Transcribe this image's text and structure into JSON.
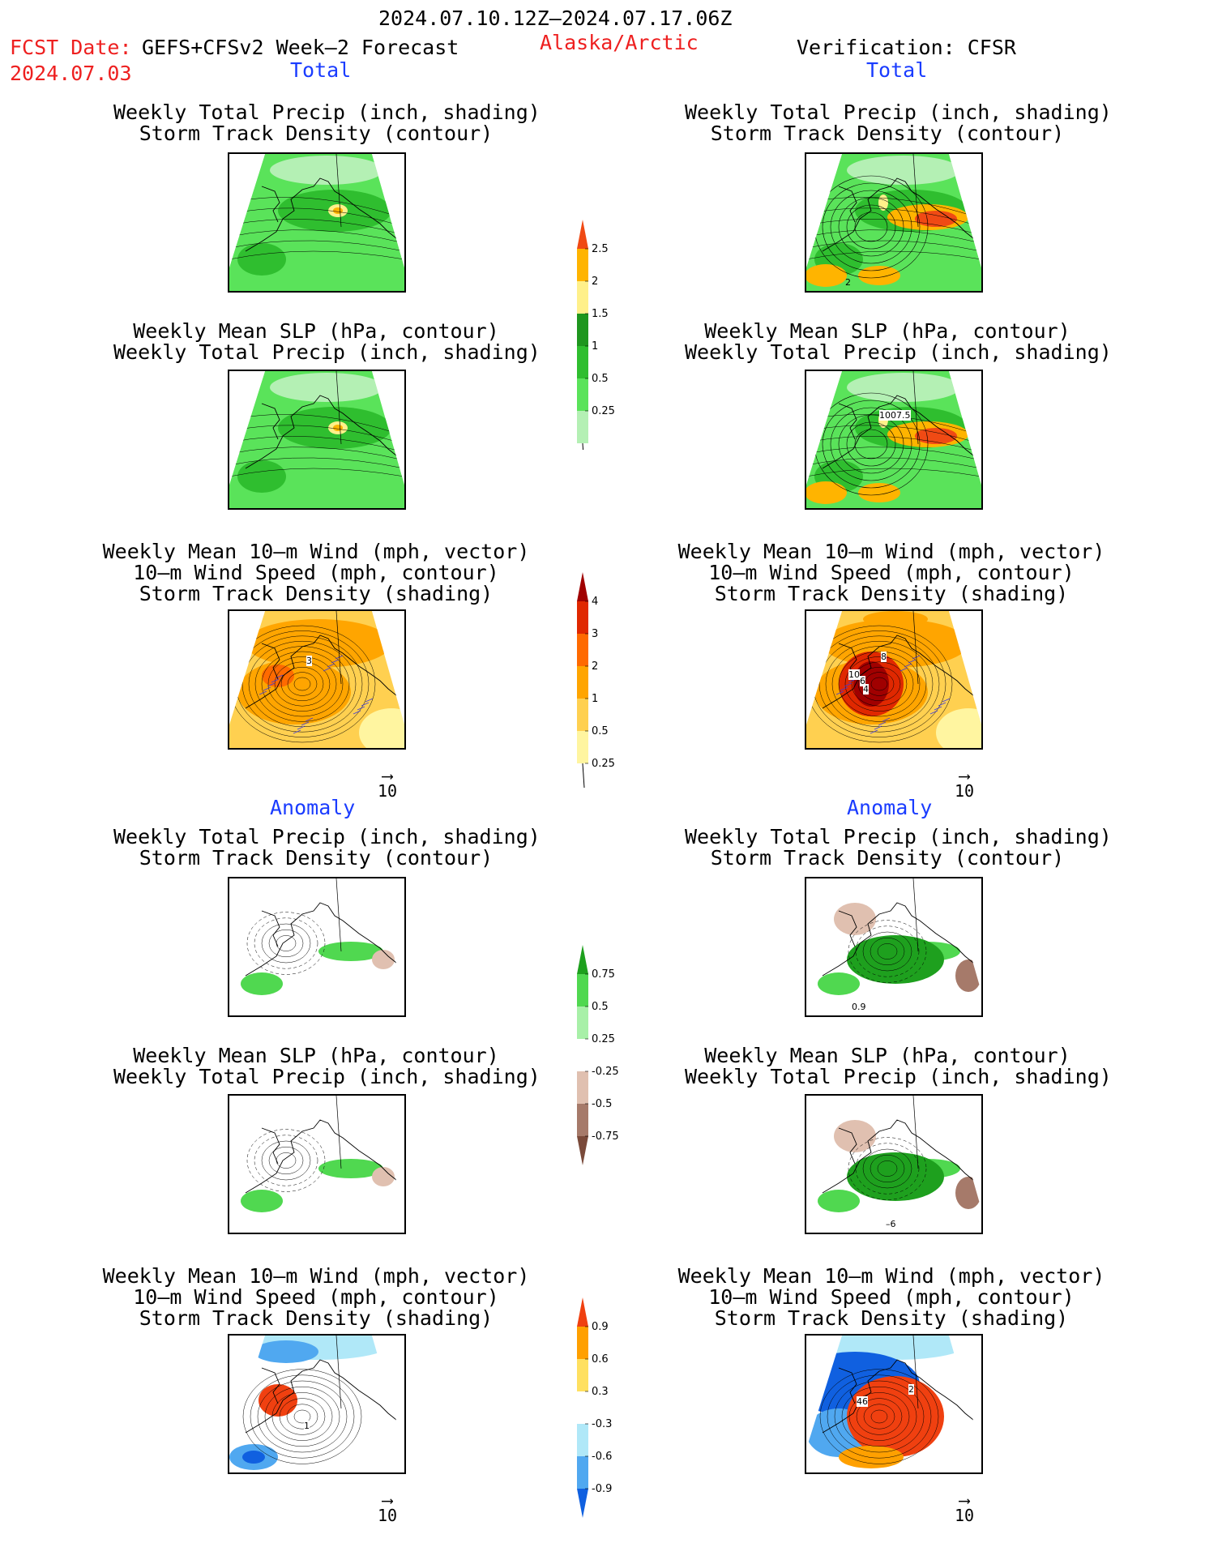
{
  "header": {
    "period": "2024.07.10.12Z–2024.07.17.06Z",
    "fcst_label": "FCST Date:",
    "model": "GEFS+CFSv2 Week–2 Forecast",
    "fcst_date": "2024.07.03",
    "region": "Alaska/Arctic",
    "verification": "Verification: CFSR"
  },
  "sections": {
    "total": "Total",
    "anomaly": "Anomaly"
  },
  "titles": {
    "precip_track": [
      "Weekly Total Precip (inch, shading)",
      "Storm Track Density (contour)"
    ],
    "slp_precip": [
      "Weekly Mean SLP (hPa, contour)",
      "Weekly Total Precip (inch, shading)"
    ],
    "wind_track": [
      "Weekly Mean 10–m Wind (mph, vector)",
      "10–m Wind Speed (mph, contour)",
      "Storm Track Density (shading)"
    ]
  },
  "contour_labels": {
    "total_precip_track_right": "2",
    "total_slp_right": "1007.5",
    "total_wind_left": "3",
    "total_wind_right_a": "10",
    "total_wind_right_b": "6",
    "total_wind_right_c": "4",
    "total_wind_right_d": "8",
    "anom_precip_track_right": "0.9",
    "anom_slp_right": "–6",
    "anom_wind_left": "1",
    "anom_wind_right_a": "46",
    "anom_wind_right_b": "2"
  },
  "vector_reference": "10",
  "colors": {
    "precip": [
      "#b4f0b4",
      "#5ae35a",
      "#2fbe2f",
      "#1e961e",
      "#fff08a",
      "#ffb400",
      "#f04a14"
    ],
    "track": [
      "#fff5a0",
      "#ffd050",
      "#ffa500",
      "#ff6a00",
      "#e02800",
      "#a00000"
    ],
    "precip_anom": [
      "#7a4a3a",
      "#a67a6a",
      "#e0c0b0",
      "#ffffff",
      "#a8f0a8",
      "#50d850",
      "#1ea01e"
    ],
    "track_anom": [
      "#1060e0",
      "#50a8f0",
      "#b0e8f8",
      "#ffffff",
      "#ffe060",
      "#ffa000",
      "#f04010"
    ]
  },
  "chart_data": [
    {
      "type": "heatmap",
      "panel": "total-forecast-precip-track",
      "title": "Weekly Total Precip (inch, shading) / Storm Track Density (contour)",
      "colorbar": {
        "levels": [
          0.25,
          0.5,
          1,
          1.5,
          2,
          2.5
        ]
      }
    },
    {
      "type": "heatmap",
      "panel": "total-forecast-slp-precip",
      "title": "Weekly Mean SLP (hPa, contour) / Weekly Total Precip (inch, shading)",
      "colorbar": {
        "levels": [
          0.25,
          0.5,
          1,
          1.5,
          2,
          2.5
        ]
      }
    },
    {
      "type": "heatmap",
      "panel": "total-forecast-wind-track",
      "title": "Weekly Mean 10–m Wind (mph, vector) / 10–m Wind Speed (mph, contour) / Storm Track Density (shading)",
      "colorbar": {
        "levels": [
          0.25,
          0.5,
          1,
          2,
          3,
          4
        ]
      }
    },
    {
      "type": "heatmap",
      "panel": "anomaly-precip",
      "colorbar": {
        "levels": [
          -0.75,
          -0.5,
          -0.25,
          0.25,
          0.5,
          0.75
        ]
      }
    },
    {
      "type": "heatmap",
      "panel": "anomaly-track",
      "colorbar": {
        "levels": [
          -0.9,
          -0.6,
          -0.3,
          0.3,
          0.6,
          0.9
        ]
      }
    }
  ]
}
